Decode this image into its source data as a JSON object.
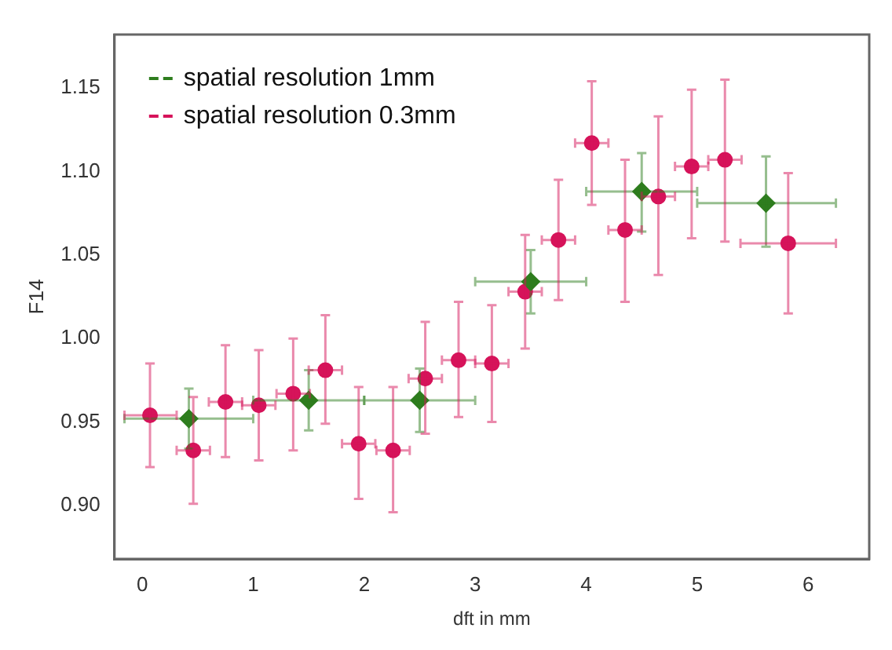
{
  "chart_data": {
    "type": "scatter",
    "xlabel": "dft in mm",
    "ylabel": "F14",
    "xlim": [
      -0.25,
      6.55
    ],
    "ylim": [
      0.868,
      1.182
    ],
    "xticks": [
      0,
      1,
      2,
      3,
      4,
      5,
      6
    ],
    "yticks": [
      {
        "value": 0.9,
        "label": "0.90"
      },
      0.95,
      {
        "value": 1.0,
        "label": "1.00"
      },
      1.05,
      {
        "value": 1.1,
        "label": "1.10"
      },
      1.15
    ],
    "grid": false,
    "legend": "top left",
    "series": [
      {
        "name": "spatial resolution 1mm",
        "color": "#2e7d1e",
        "marker": "diamond",
        "x": [
          0.42,
          1.5,
          2.5,
          3.5,
          4.5,
          5.62
        ],
        "values": [
          0.952,
          0.963,
          0.963,
          1.034,
          1.088,
          1.081
        ],
        "errors": [
          [
            0.934,
            0.97
          ],
          [
            0.945,
            0.981
          ],
          [
            0.944,
            0.982
          ],
          [
            1.015,
            1.053
          ],
          [
            1.064,
            1.111
          ],
          [
            1.055,
            1.109
          ]
        ],
        "xerrors": [
          [
            -0.16,
            1.0
          ],
          [
            1.0,
            2.0
          ],
          [
            2.0,
            3.0
          ],
          [
            3.0,
            4.0
          ],
          [
            4.0,
            5.0
          ],
          [
            5.0,
            6.25
          ]
        ]
      },
      {
        "name": "spatial resolution 0.3mm",
        "color": "#d6135a",
        "marker": "circle",
        "x": [
          0.07,
          0.46,
          0.75,
          1.05,
          1.36,
          1.65,
          1.95,
          2.26,
          2.55,
          2.85,
          3.15,
          3.45,
          3.75,
          4.05,
          4.35,
          4.65,
          4.95,
          5.25,
          5.82
        ],
        "values": [
          0.954,
          0.933,
          0.962,
          0.96,
          0.967,
          0.981,
          0.937,
          0.933,
          0.976,
          0.987,
          0.985,
          1.028,
          1.059,
          1.117,
          1.065,
          1.085,
          1.103,
          1.107,
          1.057
        ],
        "errors": [
          [
            0.923,
            0.985
          ],
          [
            0.901,
            0.965
          ],
          [
            0.929,
            0.996
          ],
          [
            0.927,
            0.993
          ],
          [
            0.933,
            1.0
          ],
          [
            0.949,
            1.014
          ],
          [
            0.904,
            0.971
          ],
          [
            0.896,
            0.971
          ],
          [
            0.943,
            1.01
          ],
          [
            0.953,
            1.022
          ],
          [
            0.95,
            1.02
          ],
          [
            0.994,
            1.062
          ],
          [
            1.023,
            1.095
          ],
          [
            1.08,
            1.154
          ],
          [
            1.022,
            1.107
          ],
          [
            1.038,
            1.133
          ],
          [
            1.06,
            1.149
          ],
          [
            1.058,
            1.155
          ],
          [
            1.015,
            1.099
          ]
        ],
        "xerrors": [
          [
            -0.16,
            0.31
          ],
          [
            0.31,
            0.61
          ],
          [
            0.6,
            0.9
          ],
          [
            0.9,
            1.2
          ],
          [
            1.21,
            1.51
          ],
          [
            1.5,
            1.8
          ],
          [
            1.8,
            2.1
          ],
          [
            2.11,
            2.41
          ],
          [
            2.4,
            2.7
          ],
          [
            2.7,
            3.0
          ],
          [
            3.0,
            3.3
          ],
          [
            3.3,
            3.6
          ],
          [
            3.6,
            3.9
          ],
          [
            3.9,
            4.2
          ],
          [
            4.2,
            4.5
          ],
          [
            4.5,
            4.8
          ],
          [
            4.8,
            5.1
          ],
          [
            5.1,
            5.4
          ],
          [
            5.39,
            6.25
          ]
        ]
      }
    ]
  }
}
